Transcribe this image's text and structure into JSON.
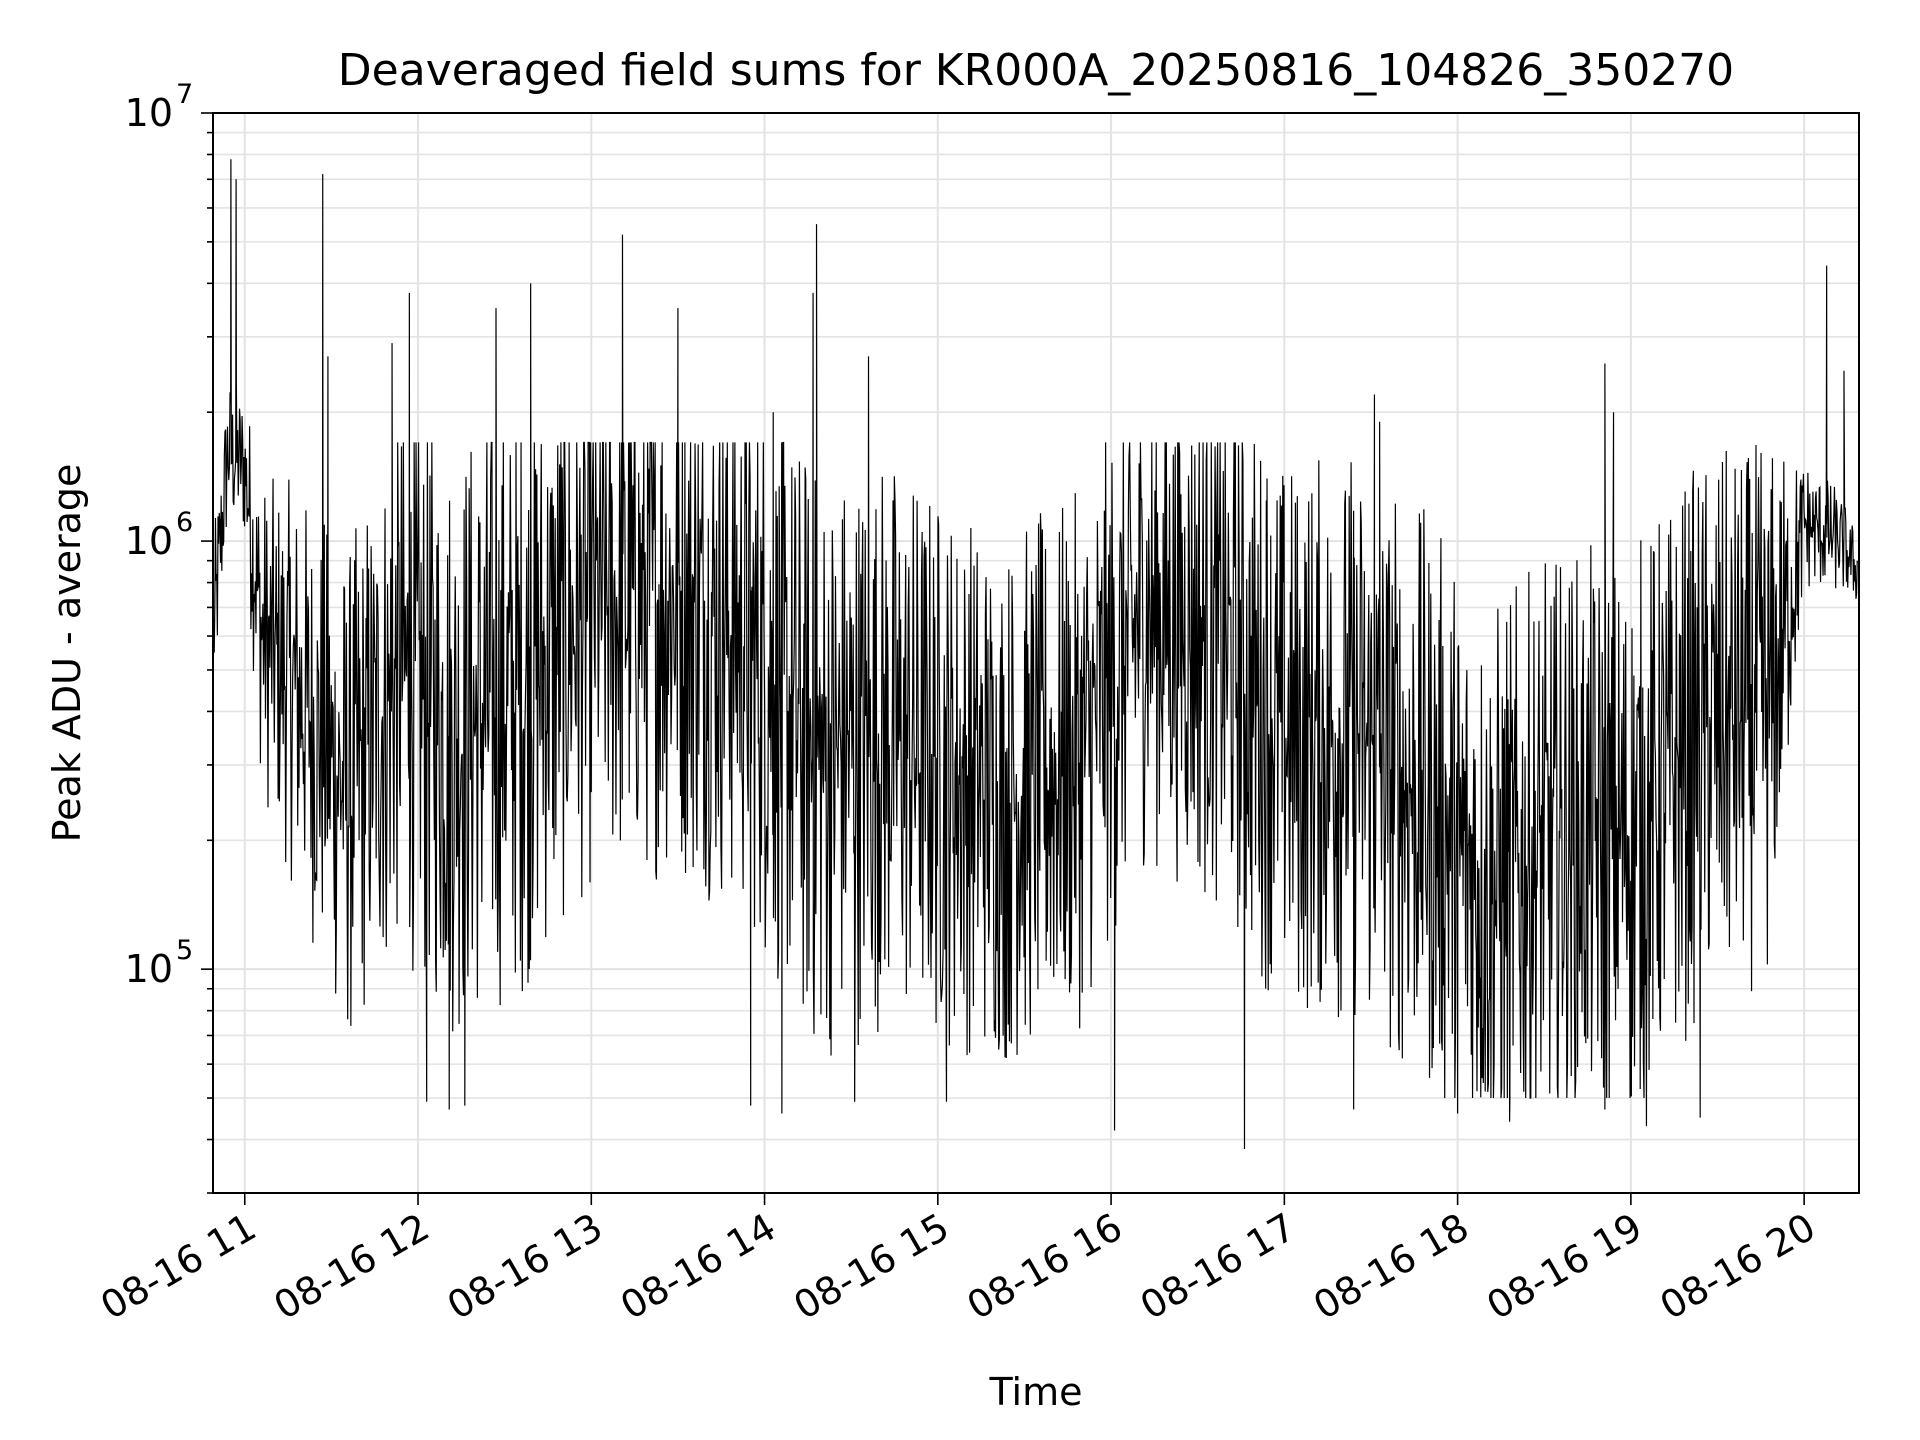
{
  "chart_data": {
    "type": "line",
    "title": "Deaveraged field sums for KR000A_20250816_104826_350270",
    "xlabel": "Time",
    "ylabel": "Peak ADU - average",
    "yscale": "log",
    "ylim": [
      30000,
      10000000
    ],
    "xlim": [
      "08-16 10:49",
      "08-16 20:19"
    ],
    "grid": true,
    "line_color": "#000000",
    "x_ticks": [
      {
        "label": "08-16 11",
        "hour": 11
      },
      {
        "label": "08-16 12",
        "hour": 12
      },
      {
        "label": "08-16 13",
        "hour": 13
      },
      {
        "label": "08-16 14",
        "hour": 14
      },
      {
        "label": "08-16 15",
        "hour": 15
      },
      {
        "label": "08-16 16",
        "hour": 16
      },
      {
        "label": "08-16 17",
        "hour": 17
      },
      {
        "label": "08-16 18",
        "hour": 18
      },
      {
        "label": "08-16 19",
        "hour": 19
      },
      {
        "label": "08-16 20",
        "hour": 20
      }
    ],
    "y_ticks": [
      {
        "base": "10",
        "exp": "5",
        "value": 100000
      },
      {
        "base": "10",
        "exp": "6",
        "value": 1000000
      },
      {
        "base": "10",
        "exp": "7",
        "value": 10000000
      }
    ],
    "envelope_note_values": {
      "hours": [
        10.82,
        10.9,
        11.0,
        11.1,
        11.3,
        11.6,
        11.9,
        12.2,
        12.6,
        13.0,
        13.5,
        13.9,
        14.3,
        14.7,
        15.0,
        15.4,
        15.8,
        16.2,
        16.6,
        17.0,
        17.4,
        17.8,
        18.2,
        18.6,
        19.0,
        19.4,
        19.8,
        20.0,
        20.2,
        20.31
      ],
      "median": [
        600000,
        1600000,
        1500000,
        600000,
        450000,
        250000,
        500000,
        350000,
        450000,
        700000,
        750000,
        600000,
        300000,
        350000,
        300000,
        250000,
        300000,
        700000,
        600000,
        350000,
        350000,
        250000,
        150000,
        200000,
        200000,
        350000,
        400000,
        1100000,
        1000000,
        850000
      ],
      "spread": [
        1.6,
        1.5,
        1.5,
        2.2,
        2.8,
        3.5,
        4.0,
        4.5,
        4.5,
        4.0,
        4.0,
        4.2,
        4.5,
        4.2,
        4.0,
        3.8,
        3.8,
        3.5,
        3.8,
        4.0,
        4.2,
        4.2,
        4.3,
        4.2,
        4.3,
        4.0,
        3.8,
        1.4,
        1.3,
        1.2
      ]
    },
    "spikes": [
      {
        "hour": 10.92,
        "value": 7800000
      },
      {
        "hour": 10.95,
        "value": 7000000
      },
      {
        "hour": 11.45,
        "value": 7200000
      },
      {
        "hour": 11.48,
        "value": 2700000
      },
      {
        "hour": 11.85,
        "value": 2900000
      },
      {
        "hour": 11.95,
        "value": 3800000
      },
      {
        "hour": 12.45,
        "value": 3500000
      },
      {
        "hour": 12.65,
        "value": 4000000
      },
      {
        "hour": 13.18,
        "value": 5200000
      },
      {
        "hour": 13.5,
        "value": 3500000
      },
      {
        "hour": 14.05,
        "value": 2000000
      },
      {
        "hour": 14.28,
        "value": 3800000
      },
      {
        "hour": 14.3,
        "value": 5500000
      },
      {
        "hour": 14.6,
        "value": 2700000
      },
      {
        "hour": 16.9,
        "value": 1400000
      },
      {
        "hour": 17.52,
        "value": 2200000
      },
      {
        "hour": 17.55,
        "value": 1900000
      },
      {
        "hour": 18.85,
        "value": 2600000
      },
      {
        "hour": 18.9,
        "value": 2000000
      },
      {
        "hour": 20.13,
        "value": 4400000
      },
      {
        "hour": 20.23,
        "value": 2500000
      }
    ],
    "dips": [
      {
        "hour": 12.05,
        "value": 49000
      },
      {
        "hour": 12.18,
        "value": 47000
      },
      {
        "hour": 12.27,
        "value": 48000
      },
      {
        "hour": 13.92,
        "value": 48000
      },
      {
        "hour": 14.1,
        "value": 46000
      },
      {
        "hour": 14.52,
        "value": 49000
      },
      {
        "hour": 15.05,
        "value": 49000
      },
      {
        "hour": 16.02,
        "value": 42000
      },
      {
        "hour": 16.77,
        "value": 38000
      },
      {
        "hour": 17.4,
        "value": 47000
      },
      {
        "hour": 18.0,
        "value": 46000
      },
      {
        "hour": 18.3,
        "value": 44000
      },
      {
        "hour": 18.85,
        "value": 47000
      },
      {
        "hour": 19.09,
        "value": 43000
      },
      {
        "hour": 19.4,
        "value": 45000
      }
    ]
  }
}
